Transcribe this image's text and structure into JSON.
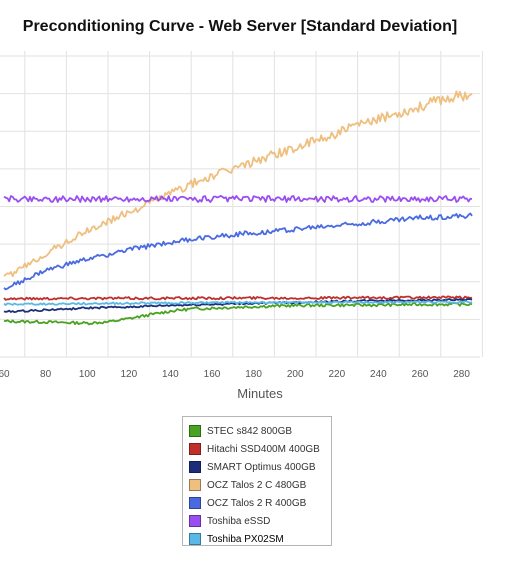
{
  "chart_data": {
    "type": "line",
    "title": "Preconditioning Curve - Web Server [Standard Deviation]",
    "xlabel": "Minutes",
    "ylabel": "",
    "x_ticks": [
      "60",
      "80",
      "100",
      "120",
      "140",
      "160",
      "180",
      "200",
      "220",
      "240",
      "260",
      "280"
    ],
    "xlim": [
      60,
      285
    ],
    "ylim": [
      0,
      8
    ],
    "grid": true,
    "legend_position": "bottom",
    "series": [
      {
        "name": "STEC s842 800GB",
        "color": "#4aa221",
        "x": [
          60,
          80,
          100,
          110,
          120,
          130,
          140,
          150,
          160,
          180,
          200,
          220,
          240,
          260,
          285
        ],
        "y": [
          0.95,
          0.93,
          0.9,
          0.93,
          1.02,
          1.12,
          1.22,
          1.28,
          1.3,
          1.34,
          1.37,
          1.38,
          1.38,
          1.4,
          1.4
        ]
      },
      {
        "name": "Hitachi SSD400M 400GB",
        "color": "#c0302a",
        "x": [
          60,
          100,
          140,
          180,
          220,
          260,
          285
        ],
        "y": [
          1.55,
          1.56,
          1.56,
          1.57,
          1.57,
          1.58,
          1.58
        ]
      },
      {
        "name": "SMART Optimus 400GB",
        "color": "#1c2e7a",
        "x": [
          60,
          80,
          100,
          120,
          140,
          160,
          200,
          240,
          285
        ],
        "y": [
          1.2,
          1.25,
          1.3,
          1.33,
          1.37,
          1.4,
          1.45,
          1.5,
          1.52
        ]
      },
      {
        "name": "OCZ Talos 2 C 480GB",
        "color": "#eebf7e",
        "x": [
          60,
          70,
          80,
          90,
          100,
          110,
          120,
          130,
          140,
          150,
          160,
          170,
          180,
          190,
          200,
          210,
          220,
          230,
          240,
          250,
          260,
          270,
          280,
          285
        ],
        "y": [
          2.1,
          2.4,
          2.75,
          3.05,
          3.35,
          3.6,
          3.85,
          4.1,
          4.35,
          4.6,
          4.8,
          5.0,
          5.2,
          5.4,
          5.55,
          5.75,
          5.95,
          6.15,
          6.3,
          6.5,
          6.65,
          6.85,
          6.95,
          7.0
        ]
      },
      {
        "name": "OCZ Talos 2 R 400GB",
        "color": "#4a6be0",
        "x": [
          60,
          80,
          100,
          120,
          140,
          160,
          180,
          200,
          220,
          240,
          260,
          285
        ],
        "y": [
          1.8,
          2.3,
          2.6,
          2.85,
          3.05,
          3.2,
          3.3,
          3.4,
          3.5,
          3.6,
          3.7,
          3.75
        ]
      },
      {
        "name": "Toshiba eSSD",
        "color": "#9b4ef0",
        "x": [
          60,
          100,
          140,
          180,
          220,
          260,
          285
        ],
        "y": [
          4.2,
          4.2,
          4.2,
          4.2,
          4.2,
          4.2,
          4.2
        ]
      },
      {
        "name": "Toshiba PX02SM",
        "color": "#59b9e6",
        "x": [
          60,
          100,
          140,
          180,
          220,
          260,
          285
        ],
        "y": [
          1.4,
          1.42,
          1.44,
          1.45,
          1.45,
          1.46,
          1.46
        ]
      }
    ]
  }
}
